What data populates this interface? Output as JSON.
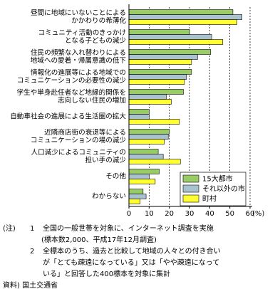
{
  "chart_data": {
    "type": "hbar",
    "categories": [
      "昼間に地域にいないことによる\nかかわりの希薄化",
      "コミュニティ活動のきっかけ\nとなる子どもの減少",
      "住民の頻繁な入れ替わりによる\n地域への愛着・帰属意識の低下",
      "情報化の進展等による地域での\nコミュニケーションの必要性の減少",
      "学生や単身赴任者など地縁的関係を\n志向しない住民の増加",
      "自動車社会の進展による生活圏の拡大",
      "近隣商店街の衰退等による\nコミュニケーションの場の減少",
      "人口減少によるコミュニティの\n担い手の減少",
      "その他",
      "わからない"
    ],
    "series": [
      {
        "name": "15大都市",
        "color": "#99cc66",
        "values": [
          51.5,
          30,
          40.5,
          31,
          27,
          10,
          20,
          14.5,
          15,
          7
        ]
      },
      {
        "name": "それ以外の市",
        "color": "#a9c2cf",
        "values": [
          56,
          41,
          34,
          28.5,
          18.5,
          10,
          19.5,
          17,
          10,
          8.5
        ]
      },
      {
        "name": "町村",
        "color": "#ffff33",
        "values": [
          53.5,
          46.5,
          31,
          27.5,
          21,
          25,
          17.5,
          25.5,
          13,
          5.5
        ]
      }
    ],
    "xlim": [
      0,
      60
    ],
    "xticks": [
      0,
      10,
      20,
      30,
      40,
      50,
      60
    ],
    "xlabel": "(%)",
    "grid": true,
    "legend": "lower right"
  },
  "notes": {
    "label": "(注)",
    "items": [
      {
        "number": "1",
        "lines": [
          "全国の一般世帯を対象に、インターネット調査を実施",
          "(標本数2,000、平成17年12月調査)"
        ]
      },
      {
        "number": "2",
        "lines": [
          "全標本のうち、過去と比較して地域の人々との付き合い",
          "が「とても疎遠になっている」又は「やや疎遠になって",
          "いる」と回答した400標本を対象に集計"
        ]
      }
    ]
  },
  "source": "資料) 国土交通省"
}
